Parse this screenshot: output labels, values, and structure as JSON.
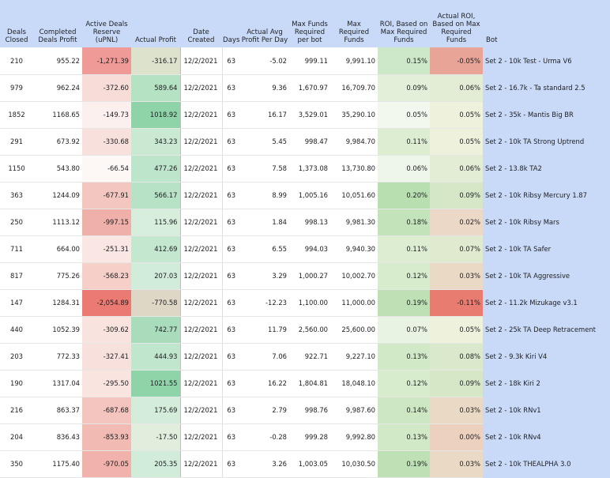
{
  "headers": {
    "deals_closed": "Deals Closed",
    "completed_profit": "Completed Deals Profit",
    "active_reserve": "Active Deals Reserve (uPNL)",
    "actual_profit": "Actual Profit",
    "date_created": "Date Created",
    "days": "Days",
    "avg_profit_day": "Actual Avg Profit Per Day",
    "max_funds_bot": "Max Funds Required per bot",
    "max_required_funds": "Max Required Funds",
    "roi_max": "ROI, Based on Max Required Funds",
    "actual_roi_max": "Actual ROI, Based on Max Required Funds",
    "bot": "Bot"
  },
  "colors": {
    "header_bg": "#c9daf8",
    "bot_col_bg": "#c9daf8"
  },
  "rows": [
    {
      "deals": "210",
      "completed": "955.22",
      "reserve": "-1,271.39",
      "profit": "-316.17",
      "date": "12/2/2021",
      "days": "63",
      "avg": "-5.02",
      "maxbot": "999.11",
      "maxreq": "9,991.10",
      "roi": "0.15%",
      "aroi": "-0.05%",
      "bot": "Set 2 - 10k Test - Urma V6",
      "c_res": "#ef9a96",
      "c_prof": "#dce2cc",
      "c_roi": "#cce8c8",
      "c_aroi": "#e8a496"
    },
    {
      "deals": "979",
      "completed": "962.24",
      "reserve": "-372.60",
      "profit": "589.64",
      "date": "12/2/2021",
      "days": "63",
      "avg": "9.36",
      "maxbot": "1,670.97",
      "maxreq": "16,709.70",
      "roi": "0.09%",
      "aroi": "0.06%",
      "bot": "Set 2 - 16.7k - Ta standard 2.5",
      "c_res": "#f7dcd7",
      "c_prof": "#b5e2c3",
      "c_roi": "#e2f0d9",
      "c_aroi": "#e3ecd4"
    },
    {
      "deals": "1852",
      "completed": "1168.65",
      "reserve": "-149.73",
      "profit": "1018.92",
      "date": "12/2/2021",
      "days": "63",
      "avg": "16.17",
      "maxbot": "3,529.01",
      "maxreq": "35,290.10",
      "roi": "0.05%",
      "aroi": "0.05%",
      "bot": "Set 2 - 35k - Mantis Big BR",
      "c_res": "#fcf0ee",
      "c_prof": "#8fd4a8",
      "c_roi": "#f3f8ef",
      "c_aroi": "#eef1dc"
    },
    {
      "deals": "291",
      "completed": "673.92",
      "reserve": "-330.68",
      "profit": "343.23",
      "date": "12/2/2021",
      "days": "63",
      "avg": "5.45",
      "maxbot": "998.47",
      "maxreq": "9,984.70",
      "roi": "0.11%",
      "aroi": "0.05%",
      "bot": "Set 2 - 10k TA Strong Uptrend",
      "c_res": "#f8e1dc",
      "c_prof": "#c9e9d3",
      "c_roi": "#dcedd2",
      "c_aroi": "#eef1dc"
    },
    {
      "deals": "1150",
      "completed": "543.80",
      "reserve": "-66.54",
      "profit": "477.26",
      "date": "12/2/2021",
      "days": "63",
      "avg": "7.58",
      "maxbot": "1,373.08",
      "maxreq": "13,730.80",
      "roi": "0.06%",
      "aroi": "0.06%",
      "bot": "Set 2 - 13.8k TA2",
      "c_res": "#fdf7f6",
      "c_prof": "#bde5cb",
      "c_roi": "#eef5e9",
      "c_aroi": "#e3ecd4"
    },
    {
      "deals": "363",
      "completed": "1244.09",
      "reserve": "-677.91",
      "profit": "566.17",
      "date": "12/2/2021",
      "days": "63",
      "avg": "8.99",
      "maxbot": "1,005.16",
      "maxreq": "10,051.60",
      "roi": "0.20%",
      "aroi": "0.09%",
      "bot": "Set 2 - 10k Ribsy Mercury 1.87",
      "c_res": "#f3c6bf",
      "c_prof": "#b7e2c5",
      "c_roi": "#b8dfb0",
      "c_aroi": "#d6e7c8"
    },
    {
      "deals": "250",
      "completed": "1113.12",
      "reserve": "-997.15",
      "profit": "115.96",
      "date": "12/2/2021",
      "days": "63",
      "avg": "1.84",
      "maxbot": "998.13",
      "maxreq": "9,981.30",
      "roi": "0.18%",
      "aroi": "0.02%",
      "bot": "Set 2 - 10k Ribsy Mars",
      "c_res": "#efb0a9",
      "c_prof": "#d8eedc",
      "c_roi": "#c3e3bb",
      "c_aroi": "#ebd8c6"
    },
    {
      "deals": "711",
      "completed": "664.00",
      "reserve": "-251.31",
      "profit": "412.69",
      "date": "12/2/2021",
      "days": "63",
      "avg": "6.55",
      "maxbot": "994.03",
      "maxreq": "9,940.30",
      "roi": "0.11%",
      "aroi": "0.07%",
      "bot": "Set 2 - 10k TA Safer",
      "c_res": "#fae7e4",
      "c_prof": "#c4e7cf",
      "c_roi": "#dcedd2",
      "c_aroi": "#dfeacf"
    },
    {
      "deals": "817",
      "completed": "775.26",
      "reserve": "-568.23",
      "profit": "207.03",
      "date": "12/2/2021",
      "days": "63",
      "avg": "3.29",
      "maxbot": "1,000.27",
      "maxreq": "10,002.70",
      "roi": "0.12%",
      "aroi": "0.03%",
      "bot": "Set 2 - 10k TA Aggressive",
      "c_res": "#f5cfc8",
      "c_prof": "#d1ecd8",
      "c_roi": "#d7ebcd",
      "c_aroi": "#ead9c4"
    },
    {
      "deals": "147",
      "completed": "1284.31",
      "reserve": "-2,054.89",
      "profit": "-770.58",
      "date": "12/2/2021",
      "days": "63",
      "avg": "-12.23",
      "maxbot": "1,100.00",
      "maxreq": "11,000.00",
      "roi": "0.19%",
      "aroi": "-0.11%",
      "bot": "Set 2 - 11.2k Mizukage v3.1",
      "c_res": "#ea7a72",
      "c_prof": "#ded7c5",
      "c_roi": "#bde1b5",
      "c_aroi": "#e97c70"
    },
    {
      "deals": "440",
      "completed": "1052.39",
      "reserve": "-309.62",
      "profit": "742.77",
      "date": "12/2/2021",
      "days": "63",
      "avg": "11.79",
      "maxbot": "2,560.00",
      "maxreq": "25,600.00",
      "roi": "0.07%",
      "aroi": "0.05%",
      "bot": "Set 2 - 25k TA Deep Retracement",
      "c_res": "#f9e3de",
      "c_prof": "#a9dcbb",
      "c_roi": "#e9f3e3",
      "c_aroi": "#eef1dc"
    },
    {
      "deals": "203",
      "completed": "772.33",
      "reserve": "-327.41",
      "profit": "444.93",
      "date": "12/2/2021",
      "days": "63",
      "avg": "7.06",
      "maxbot": "922.71",
      "maxreq": "9,227.10",
      "roi": "0.13%",
      "aroi": "0.08%",
      "bot": "Set 2 - 9.3k Kiri V4",
      "c_res": "#f8e1dc",
      "c_prof": "#c0e6cd",
      "c_roi": "#d2e9c7",
      "c_aroi": "#dae8cb"
    },
    {
      "deals": "190",
      "completed": "1317.04",
      "reserve": "-295.50",
      "profit": "1021.55",
      "date": "12/2/2021",
      "days": "63",
      "avg": "16.22",
      "maxbot": "1,804.81",
      "maxreq": "18,048.10",
      "roi": "0.12%",
      "aroi": "0.09%",
      "bot": "Set 2 - 18k Kiri 2",
      "c_res": "#f9e4e0",
      "c_prof": "#8fd4a8",
      "c_roi": "#d7ebcd",
      "c_aroi": "#d6e7c8"
    },
    {
      "deals": "216",
      "completed": "863.37",
      "reserve": "-687.68",
      "profit": "175.69",
      "date": "12/2/2021",
      "days": "63",
      "avg": "2.79",
      "maxbot": "998.76",
      "maxreq": "9,987.60",
      "roi": "0.14%",
      "aroi": "0.03%",
      "bot": "Set 2 - 10k RNv1",
      "c_res": "#f3c5be",
      "c_prof": "#d3edda",
      "c_roi": "#cde7c2",
      "c_aroi": "#ead9c4"
    },
    {
      "deals": "204",
      "completed": "836.43",
      "reserve": "-853.93",
      "profit": "-17.50",
      "date": "12/2/2021",
      "days": "63",
      "avg": "-0.28",
      "maxbot": "999.28",
      "maxreq": "9,992.80",
      "roi": "0.13%",
      "aroi": "0.00%",
      "bot": "Set 2 - 10k RNv4",
      "c_res": "#f1bab3",
      "c_prof": "#e2eedd",
      "c_roi": "#d2e9c7",
      "c_aroi": "#ecd1bf"
    },
    {
      "deals": "350",
      "completed": "1175.40",
      "reserve": "-970.05",
      "profit": "205.35",
      "date": "12/2/2021",
      "days": "63",
      "avg": "3.26",
      "maxbot": "1,003.05",
      "maxreq": "10,030.50",
      "roi": "0.19%",
      "aroi": "0.03%",
      "bot": "Set 2 - 10k THEALPHA 3.0",
      "c_res": "#f0b2ab",
      "c_prof": "#d1ecd8",
      "c_roi": "#bde1b5",
      "c_aroi": "#ead9c4"
    }
  ]
}
